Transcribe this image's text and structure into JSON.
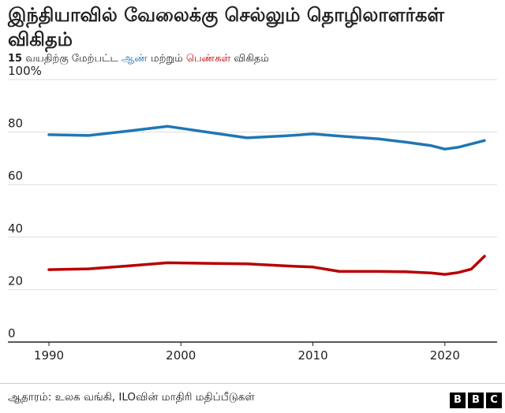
{
  "chart_data": {
    "type": "line",
    "title": "இந்தியாவில் வேலைக்கு செல்லும் தொழிலாளர்கள் விகிதம்",
    "subtitle_parts": {
      "age": "15",
      "pre": "வயதிற்கு மேற்பட்ட",
      "men": "ஆண்",
      "mid": "மற்றும்",
      "women": "பெண்கள்",
      "post": "விகிதம்"
    },
    "ylabel": "",
    "xlabel": "",
    "y_ticks": [
      "0",
      "20",
      "40",
      "60",
      "80",
      "100%"
    ],
    "y_tick_values": [
      0,
      20,
      40,
      60,
      80,
      100
    ],
    "x_ticks": [
      "1990",
      "2000",
      "2010",
      "2020"
    ],
    "x_tick_values": [
      1990,
      2000,
      2010,
      2020
    ],
    "xlim": [
      1990,
      2023
    ],
    "ylim": [
      0,
      100
    ],
    "grid": "horizontal",
    "legend": "none",
    "series": [
      {
        "color": "#1f77b4",
        "points": [
          [
            1990,
            79.0
          ],
          [
            1993,
            78.7
          ],
          [
            1996,
            80.4
          ],
          [
            1999,
            82.2
          ],
          [
            2002,
            80.0
          ],
          [
            2005,
            77.8
          ],
          [
            2008,
            78.6
          ],
          [
            2010,
            79.3
          ],
          [
            2012,
            78.5
          ],
          [
            2015,
            77.4
          ],
          [
            2017,
            76.2
          ],
          [
            2019,
            74.8
          ],
          [
            2020,
            73.5
          ],
          [
            2021,
            74.2
          ],
          [
            2023,
            76.8
          ]
        ]
      },
      {
        "color": "#b80000",
        "points": [
          [
            1990,
            27.6
          ],
          [
            1993,
            27.9
          ],
          [
            1996,
            29.0
          ],
          [
            1999,
            30.2
          ],
          [
            2002,
            30.0
          ],
          [
            2005,
            29.8
          ],
          [
            2008,
            29.0
          ],
          [
            2010,
            28.6
          ],
          [
            2012,
            26.9
          ],
          [
            2015,
            26.9
          ],
          [
            2017,
            26.8
          ],
          [
            2019,
            26.3
          ],
          [
            2020,
            25.8
          ],
          [
            2021,
            26.5
          ],
          [
            2022,
            27.8
          ],
          [
            2023,
            32.7
          ]
        ]
      }
    ],
    "colors": {
      "men": "#1f77b4",
      "women": "#b80000",
      "grid": "#dddddd",
      "axis": "#222222"
    }
  },
  "footer": {
    "source": "ஆதாரம்: உலக வங்கி, ILOவின் மாதிரி மதிப்பீடுகள்",
    "logo_letters": [
      "B",
      "B",
      "C"
    ]
  }
}
